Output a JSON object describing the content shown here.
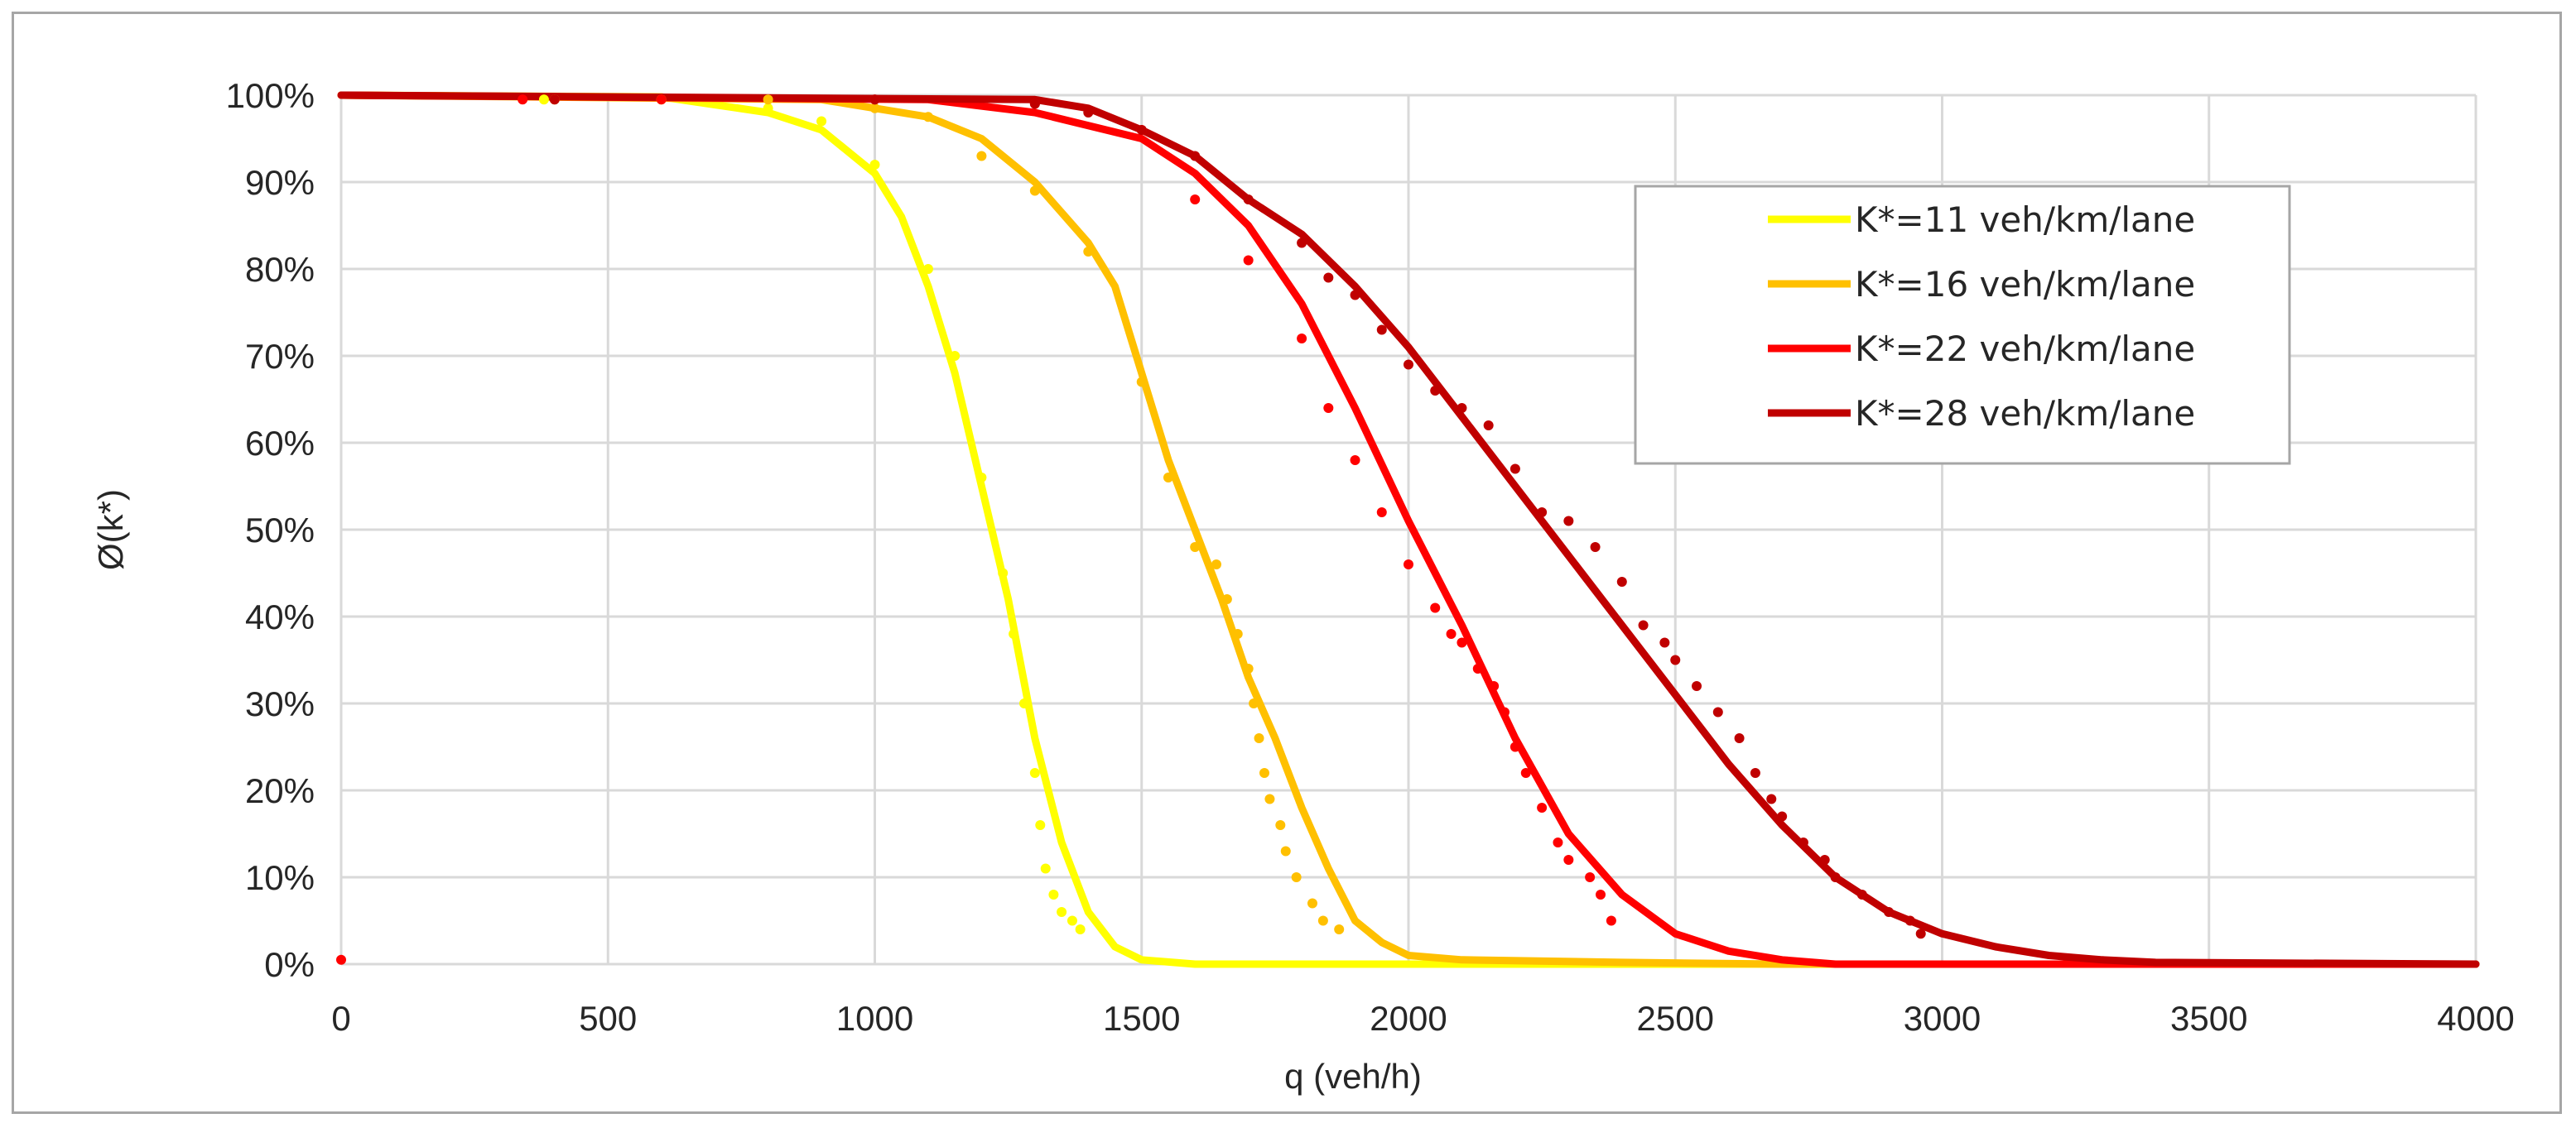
{
  "chart_data": {
    "type": "line",
    "title": "",
    "xlabel": "q (veh/h)",
    "ylabel": "Ø(k*)",
    "xlim": [
      0,
      4000
    ],
    "ylim": [
      0,
      100
    ],
    "grid": true,
    "legend_position": "top-right",
    "x_ticks": [
      0,
      500,
      1000,
      1500,
      2000,
      2500,
      3000,
      3500,
      4000
    ],
    "x_tick_labels": [
      "0",
      "500",
      "1000",
      "1500",
      "2000",
      "2500",
      "3000",
      "3500",
      "4000"
    ],
    "y_ticks": [
      0,
      10,
      20,
      30,
      40,
      50,
      60,
      70,
      80,
      90,
      100
    ],
    "y_tick_labels": [
      "0%",
      "10%",
      "20%",
      "30%",
      "40%",
      "50%",
      "60%",
      "70%",
      "80%",
      "90%",
      "100%"
    ],
    "series": [
      {
        "name": "K*=11 veh/km/lane",
        "color": "#ffff00",
        "fitted_curve": [
          [
            0,
            100
          ],
          [
            600,
            99.8
          ],
          [
            800,
            98
          ],
          [
            900,
            96
          ],
          [
            1000,
            91
          ],
          [
            1050,
            86
          ],
          [
            1100,
            78
          ],
          [
            1150,
            68
          ],
          [
            1200,
            55
          ],
          [
            1250,
            42
          ],
          [
            1300,
            26
          ],
          [
            1350,
            14
          ],
          [
            1400,
            6
          ],
          [
            1450,
            2
          ],
          [
            1500,
            0.5
          ],
          [
            1600,
            0
          ],
          [
            4000,
            0
          ]
        ],
        "observed_points": [
          [
            380,
            99.5
          ],
          [
            600,
            99.5
          ],
          [
            800,
            98.5
          ],
          [
            900,
            97
          ],
          [
            1000,
            92
          ],
          [
            1100,
            80
          ],
          [
            1150,
            70
          ],
          [
            1200,
            56
          ],
          [
            1240,
            45
          ],
          [
            1260,
            38
          ],
          [
            1280,
            30
          ],
          [
            1300,
            22
          ],
          [
            1310,
            16
          ],
          [
            1320,
            11
          ],
          [
            1335,
            8
          ],
          [
            1350,
            6
          ],
          [
            1370,
            5
          ],
          [
            1385,
            4
          ]
        ]
      },
      {
        "name": "K*=16 veh/km/lane",
        "color": "#ffc000",
        "fitted_curve": [
          [
            0,
            100
          ],
          [
            900,
            99.5
          ],
          [
            1100,
            97.5
          ],
          [
            1200,
            95
          ],
          [
            1300,
            90
          ],
          [
            1400,
            83
          ],
          [
            1450,
            78
          ],
          [
            1500,
            68
          ],
          [
            1550,
            58
          ],
          [
            1600,
            50
          ],
          [
            1650,
            42
          ],
          [
            1700,
            33
          ],
          [
            1750,
            26
          ],
          [
            1800,
            18
          ],
          [
            1850,
            11
          ],
          [
            1900,
            5
          ],
          [
            1950,
            2.5
          ],
          [
            2000,
            1
          ],
          [
            2100,
            0.5
          ],
          [
            2400,
            0.2
          ],
          [
            2700,
            0
          ],
          [
            4000,
            0
          ]
        ],
        "observed_points": [
          [
            400,
            99.5
          ],
          [
            800,
            99.5
          ],
          [
            1000,
            98.5
          ],
          [
            1100,
            97.5
          ],
          [
            1200,
            93
          ],
          [
            1300,
            89
          ],
          [
            1400,
            82
          ],
          [
            1500,
            67
          ],
          [
            1550,
            56
          ],
          [
            1600,
            48
          ],
          [
            1640,
            46
          ],
          [
            1660,
            42
          ],
          [
            1680,
            38
          ],
          [
            1700,
            34
          ],
          [
            1710,
            30
          ],
          [
            1720,
            26
          ],
          [
            1730,
            22
          ],
          [
            1740,
            19
          ],
          [
            1760,
            16
          ],
          [
            1770,
            13
          ],
          [
            1790,
            10
          ],
          [
            1820,
            7
          ],
          [
            1840,
            5
          ],
          [
            1870,
            4
          ]
        ]
      },
      {
        "name": "K*=22 veh/km/lane",
        "color": "#ff0000",
        "fitted_curve": [
          [
            0,
            100
          ],
          [
            1100,
            99.5
          ],
          [
            1300,
            98
          ],
          [
            1500,
            95
          ],
          [
            1600,
            91
          ],
          [
            1700,
            85
          ],
          [
            1800,
            76
          ],
          [
            1900,
            64
          ],
          [
            2000,
            51
          ],
          [
            2100,
            39
          ],
          [
            2200,
            26
          ],
          [
            2300,
            15
          ],
          [
            2400,
            8
          ],
          [
            2500,
            3.5
          ],
          [
            2600,
            1.5
          ],
          [
            2700,
            0.5
          ],
          [
            2800,
            0
          ],
          [
            4000,
            0
          ]
        ],
        "observed_points": [
          [
            0,
            0.5
          ],
          [
            340,
            99.5
          ],
          [
            600,
            99.5
          ],
          [
            1000,
            99.5
          ],
          [
            1300,
            99
          ],
          [
            1500,
            96
          ],
          [
            1600,
            88
          ],
          [
            1700,
            81
          ],
          [
            1800,
            72
          ],
          [
            1850,
            64
          ],
          [
            1900,
            58
          ],
          [
            1950,
            52
          ],
          [
            2000,
            46
          ],
          [
            2050,
            41
          ],
          [
            2080,
            38
          ],
          [
            2100,
            37
          ],
          [
            2130,
            34
          ],
          [
            2160,
            32
          ],
          [
            2180,
            29
          ],
          [
            2200,
            25
          ],
          [
            2220,
            22
          ],
          [
            2250,
            18
          ],
          [
            2280,
            14
          ],
          [
            2300,
            12
          ],
          [
            2340,
            10
          ],
          [
            2360,
            8
          ],
          [
            2380,
            5
          ]
        ]
      },
      {
        "name": "K*=28 veh/km/lane",
        "color": "#c00000",
        "fitted_curve": [
          [
            0,
            100
          ],
          [
            1300,
            99.5
          ],
          [
            1400,
            98.5
          ],
          [
            1500,
            96
          ],
          [
            1600,
            93
          ],
          [
            1700,
            88
          ],
          [
            1800,
            84
          ],
          [
            1900,
            78
          ],
          [
            2000,
            71
          ],
          [
            2100,
            63
          ],
          [
            2200,
            55
          ],
          [
            2300,
            47
          ],
          [
            2400,
            39
          ],
          [
            2500,
            31
          ],
          [
            2600,
            23
          ],
          [
            2700,
            16
          ],
          [
            2800,
            10
          ],
          [
            2900,
            6
          ],
          [
            3000,
            3.5
          ],
          [
            3100,
            2
          ],
          [
            3200,
            1
          ],
          [
            3300,
            0.5
          ],
          [
            3400,
            0.2
          ],
          [
            4000,
            0
          ]
        ],
        "observed_points": [
          [
            400,
            99.5
          ],
          [
            1000,
            99.5
          ],
          [
            1300,
            99
          ],
          [
            1400,
            98
          ],
          [
            1500,
            96
          ],
          [
            1600,
            93
          ],
          [
            1700,
            88
          ],
          [
            1800,
            83
          ],
          [
            1850,
            79
          ],
          [
            1900,
            77
          ],
          [
            1950,
            73
          ],
          [
            2000,
            69
          ],
          [
            2050,
            66
          ],
          [
            2100,
            64
          ],
          [
            2150,
            62
          ],
          [
            2200,
            57
          ],
          [
            2250,
            52
          ],
          [
            2300,
            51
          ],
          [
            2350,
            48
          ],
          [
            2400,
            44
          ],
          [
            2440,
            39
          ],
          [
            2480,
            37
          ],
          [
            2500,
            35
          ],
          [
            2540,
            32
          ],
          [
            2580,
            29
          ],
          [
            2620,
            26
          ],
          [
            2650,
            22
          ],
          [
            2680,
            19
          ],
          [
            2700,
            17
          ],
          [
            2740,
            14
          ],
          [
            2780,
            12
          ],
          [
            2800,
            10
          ],
          [
            2850,
            8
          ],
          [
            2900,
            6
          ],
          [
            2940,
            5
          ],
          [
            2960,
            3.5
          ]
        ]
      }
    ]
  }
}
